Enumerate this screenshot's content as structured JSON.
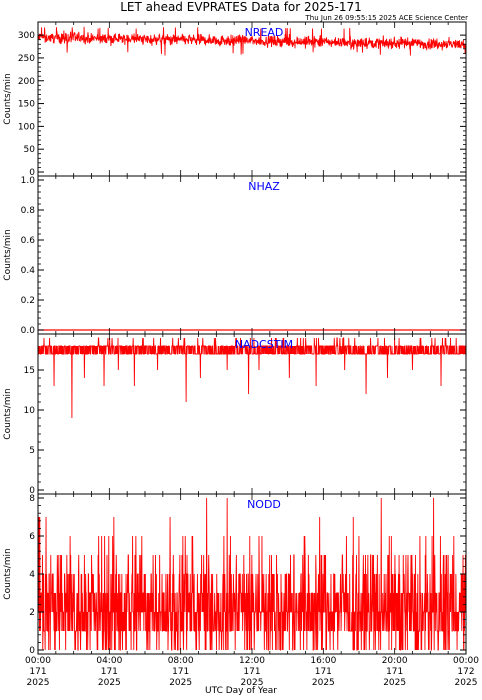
{
  "header": {
    "title": "LET ahead EVPRATES Data for 2025-171",
    "timestamp": "Thu Jun 26 09:55:15 2025 ACE Science Center"
  },
  "chart_data": {
    "type": "line",
    "xlabel": "UTC Day of Year",
    "xlim_hours": [
      0,
      24
    ],
    "x_ticks": [
      {
        "time": "00:00",
        "doy": "171",
        "year": "2025"
      },
      {
        "time": "04:00",
        "doy": "171",
        "year": "2025"
      },
      {
        "time": "08:00",
        "doy": "171",
        "year": "2025"
      },
      {
        "time": "12:00",
        "doy": "171",
        "year": "2025"
      },
      {
        "time": "16:00",
        "doy": "171",
        "year": "2025"
      },
      {
        "time": "20:00",
        "doy": "171",
        "year": "2025"
      },
      {
        "time": "00:00",
        "doy": "172",
        "year": "2025"
      }
    ],
    "line_color": "#ff0000",
    "label_color": "#0000ff",
    "panels": [
      {
        "name": "NREAD",
        "ylabel": "Counts/min",
        "ylim": [
          0,
          320
        ],
        "yticks": [
          "0",
          "50",
          "100",
          "150",
          "200",
          "250",
          "300"
        ],
        "ytick_values": [
          0,
          50,
          100,
          150,
          200,
          250,
          300
        ],
        "shape": "noise",
        "mean_start": 295,
        "mean_end": 280,
        "amplitude": 12,
        "min": 255,
        "max": 318
      },
      {
        "name": "NHAZ",
        "ylabel": "Counts/min",
        "ylim": [
          0,
          1
        ],
        "yticks": [
          "0.0",
          "0.2",
          "0.4",
          "0.6",
          "0.8",
          "1.0"
        ],
        "ytick_values": [
          0,
          0.2,
          0.4,
          0.6,
          0.8,
          1.0
        ],
        "shape": "constant",
        "value": 0
      },
      {
        "name": "NADCSTIM",
        "ylabel": "Counts/min",
        "ylim": [
          0,
          19
        ],
        "yticks": [
          "0",
          "5",
          "10",
          "15"
        ],
        "ytick_values": [
          0,
          5,
          10,
          15
        ],
        "shape": "band",
        "low": 17,
        "high": 18,
        "spike_high": 19,
        "dip_hours": [
          0.9,
          1.9,
          2.6,
          3.7,
          4.5,
          5.4,
          6.7,
          8.3,
          9.1,
          10.6,
          11.8,
          12.4,
          14.1,
          15.6,
          17.2,
          18.4,
          19.6,
          21.0,
          22.6
        ],
        "dip_values": [
          13,
          9,
          14,
          13,
          15,
          13,
          15,
          11,
          14,
          15,
          12,
          15,
          14,
          13,
          15,
          12,
          14,
          15,
          13
        ]
      },
      {
        "name": "NODD",
        "ylabel": "Counts/min",
        "ylim": [
          0,
          8
        ],
        "yticks": [
          "0",
          "2",
          "4",
          "6",
          "8"
        ],
        "ytick_values": [
          0,
          2,
          4,
          6,
          8
        ],
        "shape": "poisson",
        "mean": 2.3,
        "max": 8
      }
    ]
  }
}
